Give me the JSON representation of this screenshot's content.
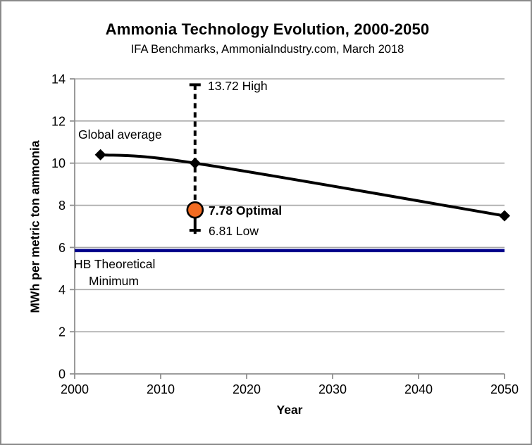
{
  "chart_data": {
    "type": "line",
    "title": "Ammonia Technology Evolution, 2000-2050",
    "subtitle": "IFA Benchmarks, AmmoniaIndustry.com, March 2018",
    "xlabel": "Year",
    "ylabel": "MWh per metric ton ammonia",
    "xlim": [
      2000,
      2050
    ],
    "ylim": [
      0,
      14
    ],
    "x_ticks": [
      2000,
      2010,
      2020,
      2030,
      2040,
      2050
    ],
    "y_ticks": [
      0,
      2,
      4,
      6,
      8,
      10,
      12,
      14
    ],
    "grid": "horizontal",
    "legend": "none",
    "series": [
      {
        "name": "Global average",
        "x": [
          2003,
          2014,
          2050
        ],
        "y": [
          10.4,
          10.0,
          7.5
        ],
        "color": "#000000",
        "marker": "diamond",
        "smooth": true
      }
    ],
    "error_bar": {
      "x": 2014,
      "high": 13.72,
      "low": 6.81,
      "optimal": 7.78,
      "high_label": "13.72 High",
      "optimal_label": "7.78 Optimal",
      "low_label": "6.81 Low",
      "optimal_fill": "#F26B21",
      "line_color": "#000000"
    },
    "reference_line": {
      "value": 5.85,
      "color": "#00008B",
      "label_line1": "HB Theoretical",
      "label_line2": "Minimum"
    },
    "colors": {
      "grid": "#A8A8A8",
      "axis": "#8F8F8F",
      "text": "#000000"
    }
  }
}
